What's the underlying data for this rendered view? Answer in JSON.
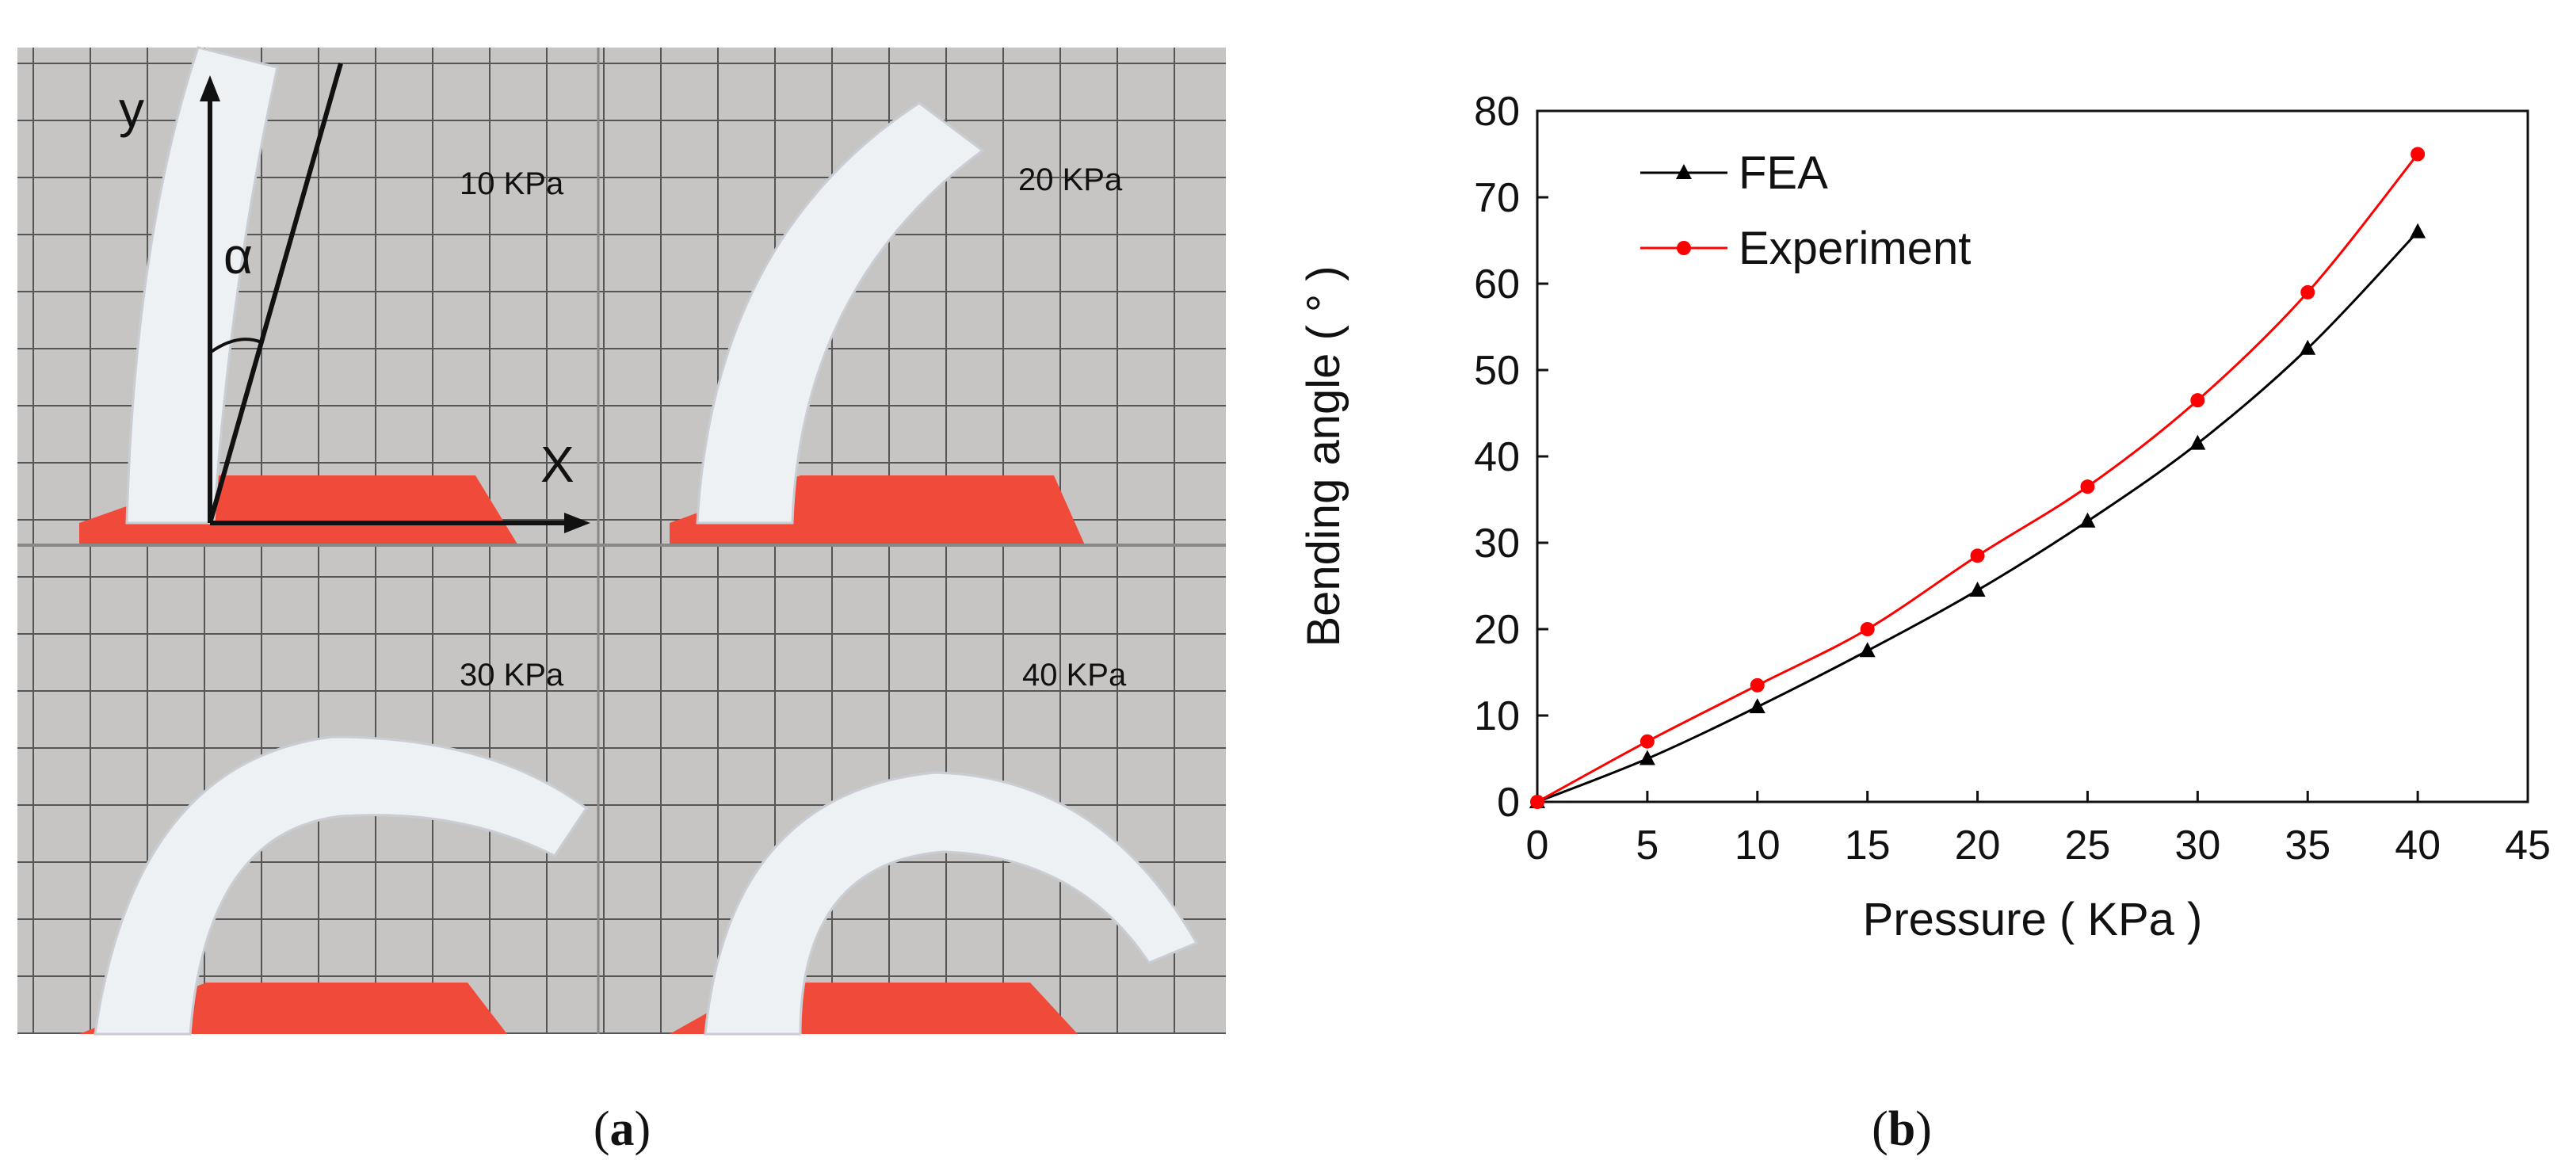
{
  "panel_a": {
    "labels": [
      "10 KPa",
      "20 KPa",
      "30 KPa",
      "40 KPa"
    ],
    "axis_y": "y",
    "axis_x": "X",
    "angle": "α",
    "caption_open": "(",
    "caption_letter": "a",
    "caption_close": ")"
  },
  "panel_b": {
    "caption_open": "(",
    "caption_letter": "b",
    "caption_close": ")"
  },
  "colors": {
    "fea": "#000000",
    "experiment": "#ff0000",
    "photo_bg": "#c7c5c3",
    "grid": "#555555",
    "base": "#f04a3a",
    "actuator": "#eef1f4"
  },
  "chart_data": {
    "type": "line",
    "xlabel": "Pressure ( KPa )",
    "ylabel": "Bending  angle ( ° )",
    "xlim": [
      0,
      45
    ],
    "ylim": [
      0,
      80
    ],
    "xticks": [
      0,
      5,
      10,
      15,
      20,
      25,
      30,
      35,
      40,
      45
    ],
    "yticks": [
      0,
      10,
      20,
      30,
      40,
      50,
      60,
      70,
      80
    ],
    "grid": false,
    "legend": "top-left",
    "x": [
      0,
      5,
      10,
      15,
      20,
      25,
      30,
      35,
      40
    ],
    "series": [
      {
        "name": "FEA",
        "marker": "triangle",
        "color": "#000000",
        "values": [
          0,
          5,
          11,
          17.5,
          24.5,
          32.5,
          41.5,
          52.5,
          66
        ]
      },
      {
        "name": "Experiment",
        "marker": "circle",
        "color": "#ff0000",
        "values": [
          0,
          7,
          13.5,
          20,
          28.5,
          36.5,
          46.5,
          59,
          75
        ]
      }
    ]
  }
}
